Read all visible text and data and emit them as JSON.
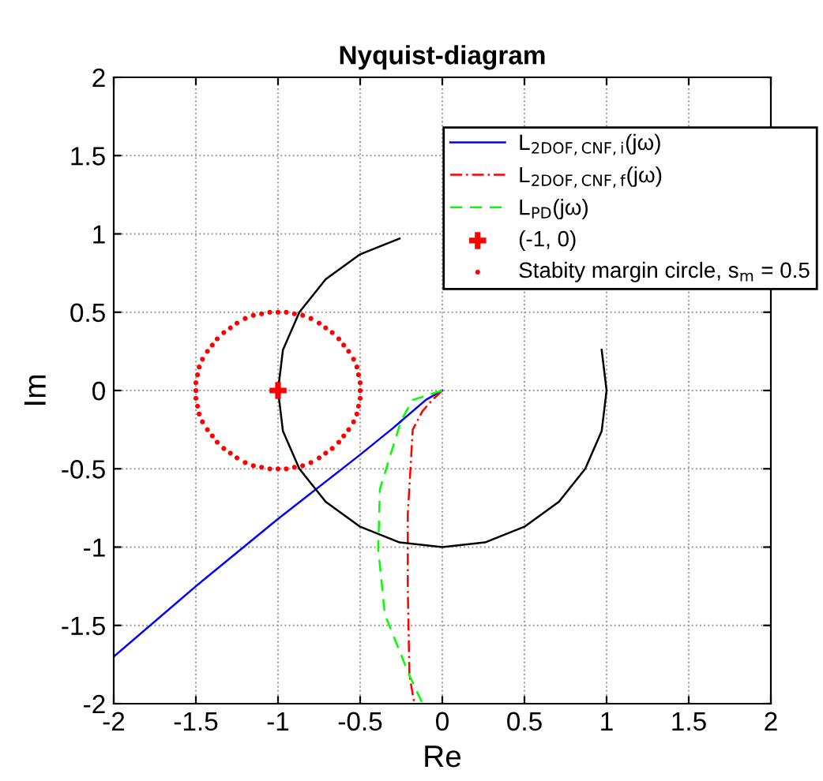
{
  "chart_data": {
    "type": "line",
    "title": "Nyquist-diagram",
    "xlabel": "Re",
    "ylabel": "Im",
    "xlim": [
      -2,
      2
    ],
    "ylim": [
      -2,
      2
    ],
    "xticks": [
      -2,
      -1.5,
      -1,
      -0.5,
      0,
      0.5,
      1,
      1.5,
      2
    ],
    "yticks": [
      -2,
      -1.5,
      -1,
      -0.5,
      0,
      0.5,
      1,
      1.5,
      2
    ],
    "grid": true,
    "legend": "top right",
    "series": [
      {
        "name": "L$_{2DOF,CNF,i}$(jω)",
        "color": "#0000ff",
        "line_style": "solid",
        "x": [
          0,
          -0.1,
          -0.3,
          -0.5,
          -1,
          -1.5,
          -2
        ],
        "values": [
          0,
          -0.06,
          -0.24,
          -0.41,
          -0.82,
          -1.25,
          -1.7
        ]
      },
      {
        "name": "L$_{2DOF,CNF,f}$(jω)",
        "color": "#ff0000",
        "line_style": "dashdot",
        "x": [
          0,
          -0.06,
          -0.12,
          -0.18,
          -0.21,
          -0.21,
          -0.2,
          -0.17
        ],
        "values": [
          0,
          -0.06,
          -0.13,
          -0.25,
          -0.79,
          -1.27,
          -1.82,
          -2.0
        ]
      },
      {
        "name": "L$_{PD}$(jω)",
        "color": "#00ff00",
        "line_style": "dashed",
        "x": [
          0,
          -0.18,
          -0.25,
          -0.38,
          -0.39,
          -0.35,
          -0.2,
          -0.12
        ],
        "values": [
          0,
          -0.06,
          -0.19,
          -0.63,
          -1.01,
          -1.43,
          -1.82,
          -2.0
        ]
      },
      {
        "name": "(-1, 0)",
        "type": "scatter",
        "marker": "cross",
        "color": "#ff0000",
        "x": [
          -1
        ],
        "values": [
          0
        ]
      },
      {
        "name": "Stabity margin circle, s$_{m}$ = 0.5",
        "type": "scatter",
        "marker": "circle",
        "color": "#ff0000",
        "x": [
          -0.5,
          -0.5,
          -0.51,
          -0.52,
          -0.54,
          -0.57,
          -0.6,
          -0.63,
          -0.67,
          -0.71,
          -0.75,
          -0.8,
          -0.85,
          -0.9,
          -0.95,
          -1,
          -1.05,
          -1.1,
          -1.15,
          -1.2,
          -1.25,
          -1.29,
          -1.33,
          -1.37,
          -1.4,
          -1.43,
          -1.46,
          -1.48,
          -1.49,
          -1.5,
          -1.5,
          -1.5,
          -1.49,
          -1.48,
          -1.46,
          -1.43,
          -1.4,
          -1.37,
          -1.33,
          -1.29,
          -1.25,
          -1.2,
          -1.15,
          -1.1,
          -1.05,
          -1,
          -0.95,
          -0.9,
          -0.85,
          -0.8,
          -0.75,
          -0.71,
          -0.67,
          -0.63,
          -0.6,
          -0.57,
          -0.54,
          -0.52,
          -0.51,
          -0.5
        ],
        "values": [
          0,
          0.05,
          0.1,
          0.15,
          0.2,
          0.25,
          0.29,
          0.33,
          0.37,
          0.4,
          0.43,
          0.46,
          0.48,
          0.49,
          0.5,
          0.5,
          0.5,
          0.49,
          0.48,
          0.46,
          0.43,
          0.4,
          0.37,
          0.33,
          0.29,
          0.25,
          0.2,
          0.15,
          0.1,
          0.05,
          0,
          -0.05,
          -0.1,
          -0.15,
          -0.2,
          -0.25,
          -0.29,
          -0.33,
          -0.37,
          -0.4,
          -0.43,
          -0.46,
          -0.48,
          -0.49,
          -0.5,
          -0.5,
          -0.5,
          -0.49,
          -0.48,
          -0.46,
          -0.43,
          -0.4,
          -0.37,
          -0.33,
          -0.29,
          -0.25,
          -0.2,
          -0.15,
          -0.1,
          -0.05
        ]
      },
      {
        "color": "#000000",
        "line_style": "solid",
        "x": [
          1,
          0.97,
          null,
          null,
          null,
          null,
          null,
          -0.26,
          -0.5,
          -0.71,
          -0.87,
          -0.97,
          -1,
          -0.97,
          -0.87,
          -0.71,
          -0.5,
          -0.26,
          0,
          0.26,
          0.5,
          0.71,
          0.87,
          0.97,
          1
        ],
        "values": [
          0,
          0.26,
          null,
          null,
          null,
          null,
          null,
          0.97,
          0.87,
          0.71,
          0.5,
          0.26,
          0,
          -0.26,
          -0.5,
          -0.71,
          -0.87,
          -0.97,
          -1,
          -0.97,
          -0.87,
          -0.71,
          -0.5,
          -0.26,
          0
        ]
      }
    ]
  }
}
